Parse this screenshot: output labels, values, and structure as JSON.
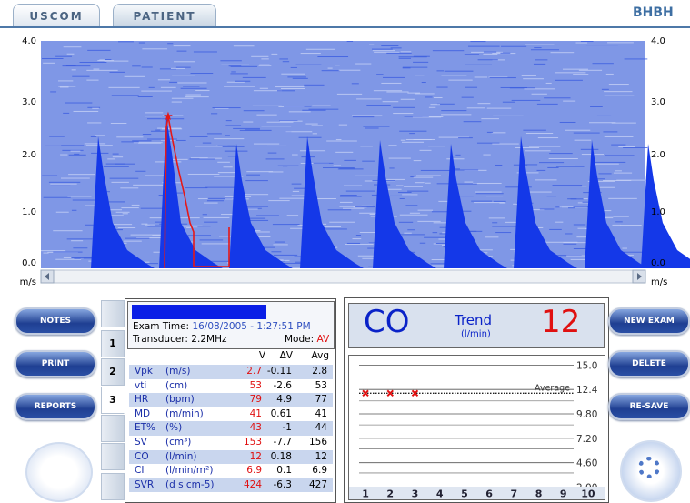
{
  "tabs": [
    "USCOM",
    "PATIENT"
  ],
  "site": "BHBH",
  "spectrum": {
    "y_labels": [
      "4.0",
      "3.0",
      "2.0",
      "1.0",
      "0.0"
    ],
    "unit": "m/s"
  },
  "buttons_left": [
    "NOTES",
    "PRINT",
    "REPORTS"
  ],
  "buttons_right": [
    "NEW EXAM",
    "DELETE",
    "RE-SAVE"
  ],
  "exam_tabs": [
    "1",
    "2",
    "3"
  ],
  "exam": {
    "time_label": "Exam Time:",
    "time": "16/08/2005 - 1:27:51 PM",
    "transducer": "Transducer: 2.2MHz",
    "mode_label": "Mode:",
    "mode": "AV"
  },
  "table": {
    "header": [
      "V",
      "ΔV",
      "Avg"
    ],
    "rows": [
      [
        "Vpk",
        "(m/s)",
        "2.7",
        "-0.11",
        "2.8"
      ],
      [
        "vti",
        "(cm)",
        "53",
        "-2.6",
        "53"
      ],
      [
        "HR",
        "(bpm)",
        "79",
        "4.9",
        "77"
      ],
      [
        "MD",
        "(m/min)",
        "41",
        "0.61",
        "41"
      ],
      [
        "ET%",
        "(%)",
        "43",
        "-1",
        "44"
      ],
      [
        "SV",
        "(cm³)",
        "153",
        "-7.7",
        "156"
      ],
      [
        "CO",
        "(l/min)",
        "12",
        "0.18",
        "12"
      ],
      [
        "CI",
        "(l/min/m²)",
        "6.9",
        "0.1",
        "6.9"
      ],
      [
        "SVR",
        "(d s cm-5)",
        "424",
        "-6.3",
        "427"
      ]
    ]
  },
  "trend": {
    "param": "CO",
    "title": "Trend",
    "unit": "(l/min)",
    "value": "12",
    "ylim": [
      0.6,
      16.1
    ],
    "yticks": [
      {
        "value": 15,
        "label": "15.0"
      },
      {
        "value": 12.4,
        "label": "12.4"
      },
      {
        "value": 9.8,
        "label": "9.80"
      },
      {
        "value": 7.2,
        "label": "7.20"
      },
      {
        "value": 4.6,
        "label": "4.60"
      },
      {
        "value": 2,
        "label": "2.00"
      }
    ],
    "xlim": [
      0.3,
      10.7
    ],
    "xticks": [
      1,
      2,
      3,
      4,
      5,
      6,
      7,
      8,
      9,
      10
    ],
    "average_label": "Average",
    "average": 12,
    "x": [
      1,
      2,
      3
    ],
    "values": [
      12,
      12,
      12
    ]
  }
}
